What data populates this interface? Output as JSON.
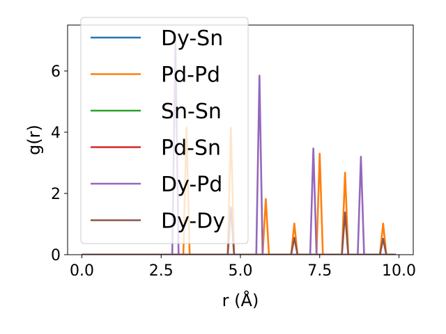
{
  "chart_data": {
    "type": "line",
    "xlabel": "r (Å)",
    "ylabel": "g(r)",
    "xlim": [
      -0.45,
      10.45
    ],
    "ylim": [
      0,
      7.5
    ],
    "xticks": [
      0.0,
      2.5,
      5.0,
      7.5,
      10.0
    ],
    "xtick_labels": [
      "0.0",
      "2.5",
      "5.0",
      "7.5",
      "10.0"
    ],
    "yticks": [
      0,
      2,
      4,
      6
    ],
    "ytick_labels": [
      "0",
      "2",
      "4",
      "6"
    ],
    "grid": false,
    "legend_position": "upper-left",
    "peak_halfwidth": 0.1,
    "x_start": 0.0,
    "x_end": 9.9,
    "series": [
      {
        "name": "Dy-Sn",
        "color": "#1f77b4",
        "peaks": []
      },
      {
        "name": "Pd-Pd",
        "color": "#ff7f0e",
        "peaks": [
          [
            3.3,
            4.15
          ],
          [
            4.7,
            4.15
          ],
          [
            5.8,
            1.82
          ],
          [
            6.7,
            1.02
          ],
          [
            7.5,
            3.3
          ],
          [
            8.3,
            2.68
          ],
          [
            9.5,
            1.02
          ]
        ]
      },
      {
        "name": "Sn-Sn",
        "color": "#2ca02c",
        "peaks": []
      },
      {
        "name": "Pd-Sn",
        "color": "#d62728",
        "peaks": []
      },
      {
        "name": "Dy-Pd",
        "color": "#9467bd",
        "peaks": [
          [
            2.95,
            7.0
          ],
          [
            5.6,
            5.85
          ],
          [
            7.3,
            3.47
          ],
          [
            8.8,
            3.2
          ]
        ]
      },
      {
        "name": "Dy-Dy",
        "color": "#8c564b",
        "peaks": [
          [
            4.7,
            1.55
          ],
          [
            6.7,
            0.55
          ],
          [
            8.3,
            1.38
          ],
          [
            9.5,
            0.52
          ]
        ]
      }
    ]
  }
}
